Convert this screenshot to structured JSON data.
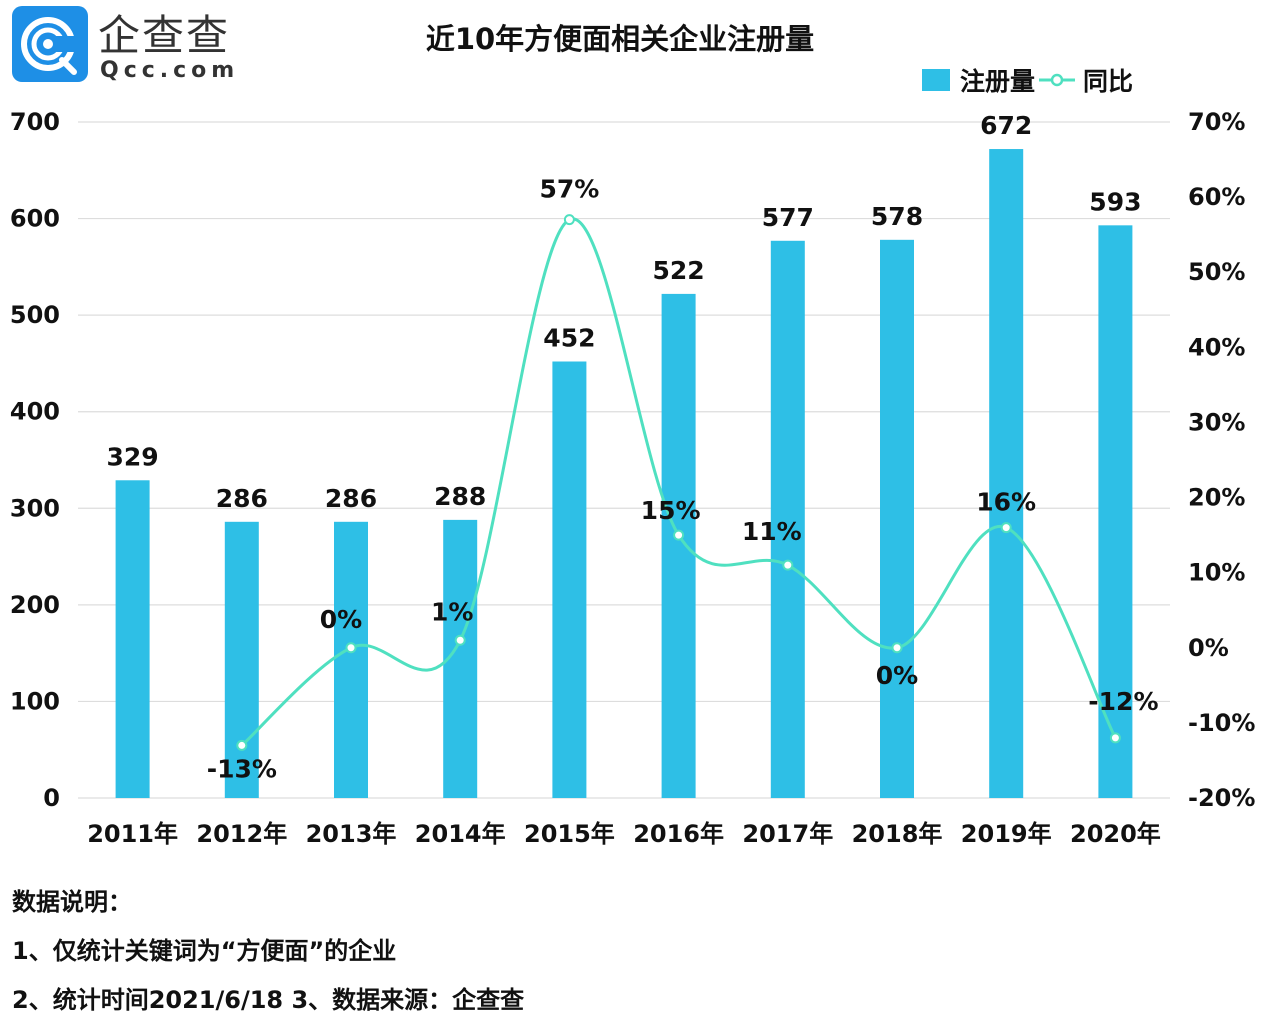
{
  "brand": {
    "name": "企查查",
    "domain": "Qcc.com",
    "logo_icon": "qcc-logo-icon"
  },
  "colors": {
    "bar": "#2ebfe6",
    "line": "#4fe0c0",
    "grid": "#dddddd",
    "text": "#111111"
  },
  "chart_data": {
    "type": "bar",
    "title": "近10年方便面相关企业注册量",
    "categories": [
      "2011年",
      "2012年",
      "2013年",
      "2014年",
      "2015年",
      "2016年",
      "2017年",
      "2018年",
      "2019年",
      "2020年"
    ],
    "series": [
      {
        "name": "注册量",
        "type": "bar",
        "axis": "left",
        "values": [
          329,
          286,
          286,
          288,
          452,
          522,
          577,
          578,
          672,
          593
        ],
        "labels": [
          "329",
          "286",
          "286",
          "288",
          "452",
          "522",
          "577",
          "578",
          "672",
          "593"
        ]
      },
      {
        "name": "同比",
        "type": "line",
        "axis": "right",
        "smooth": true,
        "values": [
          null,
          -13,
          0,
          1,
          57,
          15,
          11,
          0,
          16,
          -12
        ],
        "labels": [
          "",
          "-13%",
          "0%",
          "1%",
          "57%",
          "15%",
          "11%",
          "0%",
          "16%",
          "-12%"
        ]
      }
    ],
    "y_left": {
      "range": [
        0,
        700
      ],
      "ticks": [
        "0",
        "100",
        "200",
        "300",
        "400",
        "500",
        "600",
        "700"
      ]
    },
    "y_right": {
      "range": [
        -20,
        70
      ],
      "unit": "%",
      "ticks": [
        "-20%",
        "-10%",
        "0%",
        "10%",
        "20%",
        "30%",
        "40%",
        "50%",
        "60%",
        "70%"
      ]
    },
    "xlabel": "",
    "ylabel": "",
    "grid": true,
    "legend": {
      "position": "top-right",
      "items": [
        "注册量",
        "同比"
      ]
    }
  },
  "notes": {
    "heading": "数据说明：",
    "line1": "1、仅统计关键词为“方便面”的企业",
    "line2": "2、统计时间2021/6/18   3、数据来源：企查查"
  }
}
